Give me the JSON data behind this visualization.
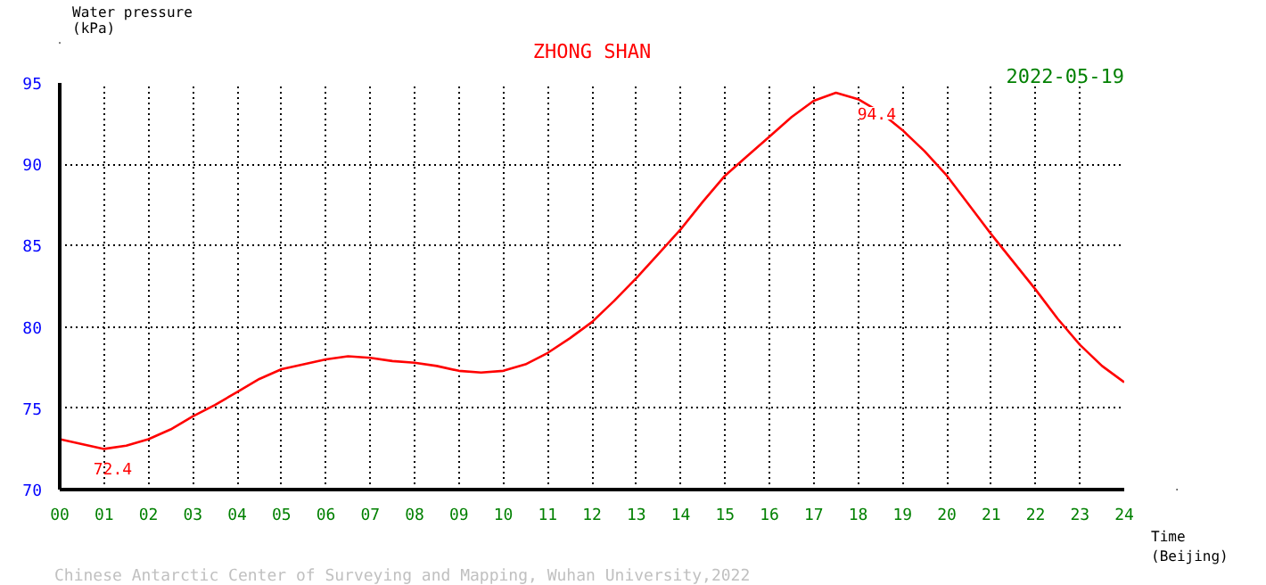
{
  "chart_data": {
    "type": "line",
    "title": "ZHONG SHAN",
    "subtitle": "2022-05-19",
    "xlabel": "Time\n(Beijing)",
    "ylabel": "Water pressure\n(kPa)",
    "x": [
      0,
      0.5,
      1,
      1.5,
      2,
      2.5,
      3,
      3.5,
      4,
      4.5,
      5,
      5.5,
      6,
      6.5,
      7,
      7.5,
      8,
      8.5,
      9,
      9.5,
      10,
      10.5,
      11,
      11.5,
      12,
      12.5,
      13,
      13.5,
      14,
      14.5,
      15,
      15.5,
      16,
      16.5,
      17,
      17.5,
      18,
      18.5,
      19,
      19.5,
      20,
      20.5,
      21,
      21.5,
      22,
      22.5,
      23,
      23.5,
      24
    ],
    "series": [
      {
        "color": "#ff0000",
        "values": [
          73.1,
          72.8,
          72.5,
          72.7,
          73.1,
          73.7,
          74.5,
          75.2,
          76.0,
          76.8,
          77.4,
          77.7,
          78.0,
          78.2,
          78.1,
          77.9,
          77.8,
          77.6,
          77.3,
          77.2,
          77.3,
          77.7,
          78.4,
          79.3,
          80.3,
          81.6,
          83.0,
          84.5,
          86.0,
          87.7,
          89.3,
          90.5,
          91.7,
          92.9,
          93.9,
          94.4,
          94.0,
          93.2,
          92.1,
          90.8,
          89.3,
          87.5,
          85.7,
          84.0,
          82.3,
          80.5,
          78.9,
          77.6,
          76.6
        ]
      }
    ],
    "xlim": [
      0,
      24
    ],
    "ylim": [
      70,
      95
    ],
    "xticks": [
      {
        "value": 0,
        "label": "00"
      },
      {
        "value": 1,
        "label": "01"
      },
      {
        "value": 2,
        "label": "02"
      },
      {
        "value": 3,
        "label": "03"
      },
      {
        "value": 4,
        "label": "04"
      },
      {
        "value": 5,
        "label": "05"
      },
      {
        "value": 6,
        "label": "06"
      },
      {
        "value": 7,
        "label": "07"
      },
      {
        "value": 8,
        "label": "08"
      },
      {
        "value": 9,
        "label": "09"
      },
      10,
      11,
      12,
      13,
      14,
      15,
      16,
      17,
      18,
      19,
      20,
      21,
      22,
      23,
      24
    ],
    "yticks": [
      70,
      75,
      80,
      85,
      90,
      95
    ],
    "grid": true,
    "marker": "none",
    "line_style": "solid",
    "annotations": [
      {
        "text": "72.4",
        "x": 1,
        "y": 72.4
      },
      {
        "text": "94.4",
        "x": 17.5,
        "y": 94.4
      },
      "Chinese Antarctic Center of Surveying and Mapping, Wuhan University,2022"
    ]
  }
}
